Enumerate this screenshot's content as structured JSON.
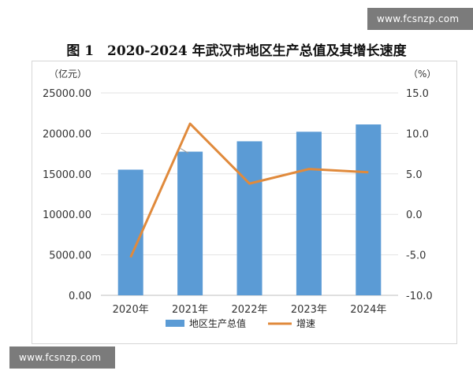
{
  "watermark_top": "www.fcsnzp.com",
  "watermark_bottom": "www.fcsnzp.com",
  "colors": {
    "bar": "#5b9bd5",
    "line": "#e08a3c"
  },
  "chart_data": {
    "type": "bar",
    "title": "图 1　2020-2024 年武汉市地区生产总值及其增长速度",
    "categories": [
      "2020年",
      "2021年",
      "2022年",
      "2023年",
      "2024年"
    ],
    "left_unit": "（亿元）",
    "right_unit": "（%）",
    "y_left": {
      "min": 0,
      "max": 25000,
      "ticks": [
        "0.00",
        "5000.00",
        "10000.00",
        "15000.00",
        "20000.00",
        "25000.00"
      ]
    },
    "y_right": {
      "min": -10,
      "max": 15,
      "ticks": [
        "-10.0",
        "-5.0",
        "0.0",
        "5.0",
        "10.0",
        "15.0"
      ]
    },
    "series": [
      {
        "name": "地区生产总值",
        "type": "bar",
        "axis": "left",
        "values": [
          15521.56,
          17746.18,
          19024.86,
          20202.87,
          21106.23
        ],
        "labels": [
          "15521.56",
          "17746.18",
          "19024.86",
          "20202.87",
          "21106.23"
        ]
      },
      {
        "name": "增速",
        "type": "line",
        "axis": "right",
        "values": [
          -5.3,
          11.2,
          3.8,
          5.6,
          5.2
        ],
        "labels": [
          "-5.3",
          "11.2",
          "3.8",
          "5.6",
          "5.2"
        ]
      }
    ],
    "legend": {
      "position": "bottom"
    }
  }
}
